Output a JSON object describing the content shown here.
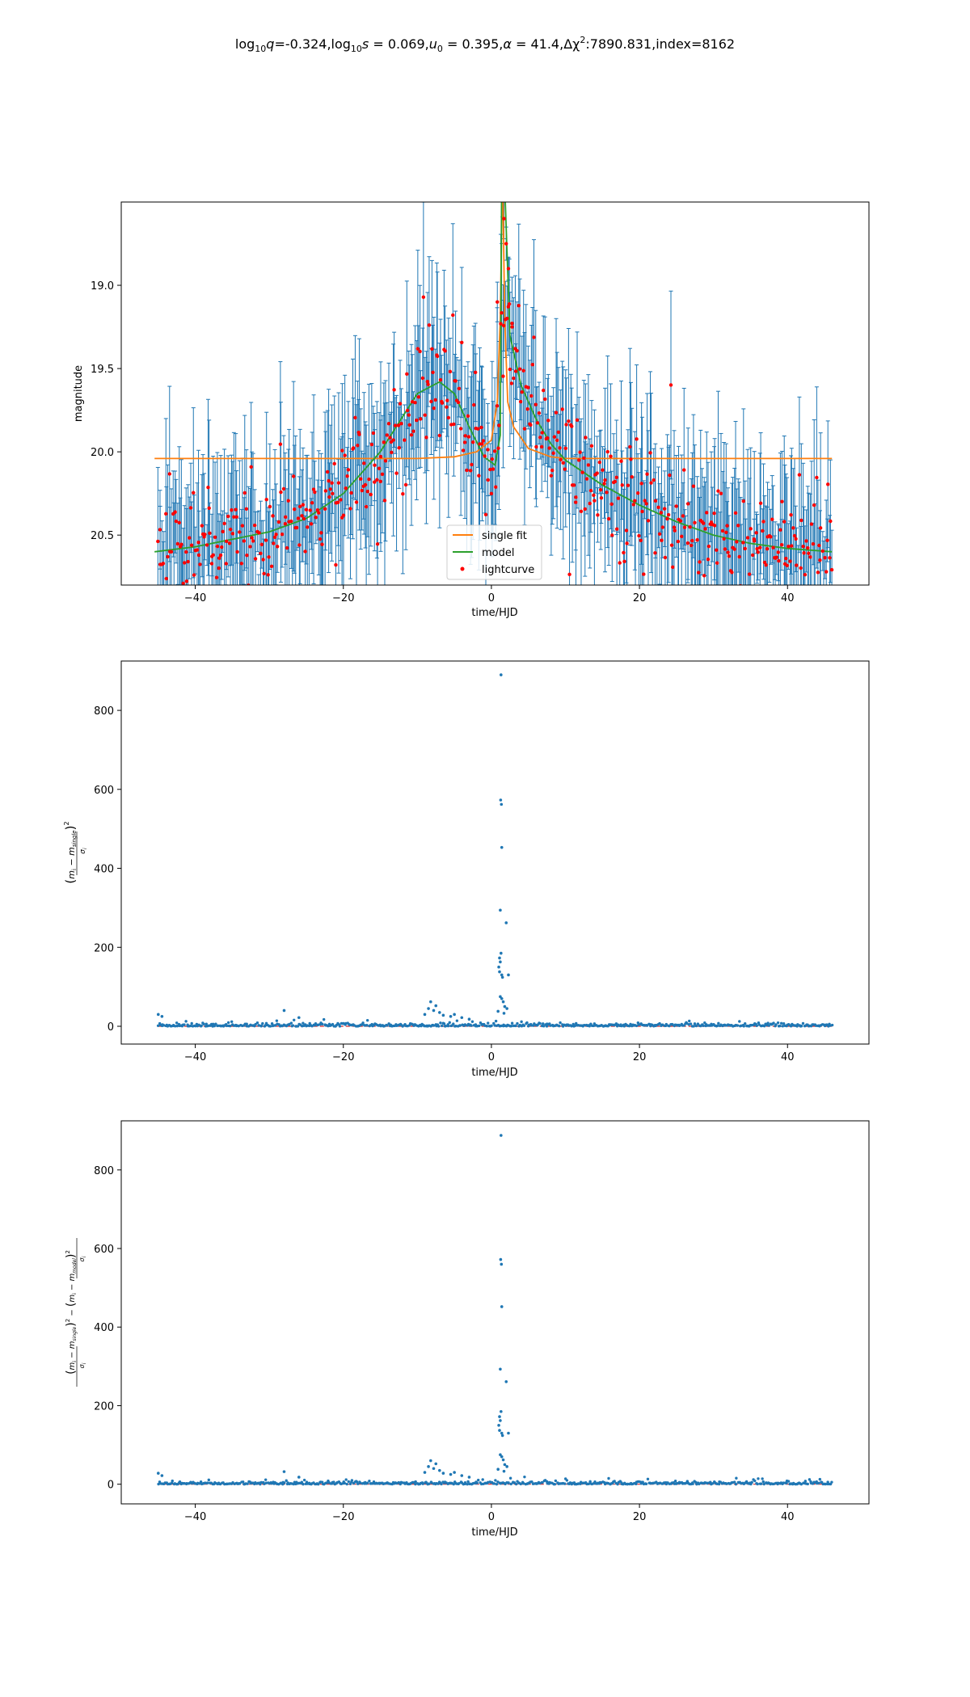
{
  "title_parts": {
    "log": "log",
    "sub10": "10",
    "q": "q",
    "q_val": "=-0.324,",
    "s": "s",
    "s_val": " = 0.069,",
    "u": "u",
    "sub0": "0",
    "u_val": " = 0.395,",
    "alpha": "α",
    "alpha_val": " = 41.4,",
    "delta_chi": "Δχ",
    "sup2": "2",
    "chi_val": ":7890.831,index=8162"
  },
  "chart_data": [
    {
      "type": "scatter",
      "panel": "lightcurve",
      "xlabel": "time/HJD",
      "ylabel": "magnitude",
      "xlim": [
        -50,
        51
      ],
      "ylim": [
        20.8,
        18.5
      ],
      "y_inverted": true,
      "xticks": [
        -40,
        -20,
        0,
        20,
        40
      ],
      "yticks": [
        19.0,
        19.5,
        20.0,
        20.5
      ],
      "xtick_labels": [
        "−40",
        "−20",
        "0",
        "20",
        "40"
      ],
      "ytick_labels": [
        "19.0",
        "19.5",
        "20.0",
        "20.5"
      ],
      "legend_position": "lower center",
      "legend": [
        "single fit",
        "model",
        "lightcurve"
      ],
      "colors": {
        "single_fit": "#ff7f0e",
        "model": "#2ca02c",
        "lightcurve": "#ff0000",
        "errorbar": "#1f77b4"
      },
      "single_fit": {
        "baseline": 20.04,
        "t0": 1.5,
        "peak_magnitude": 18.3,
        "x": [
          -45.5,
          -20,
          -10,
          -5,
          -2,
          0,
          0.8,
          1.2,
          1.5,
          1.8,
          2.2,
          3,
          5,
          8,
          10,
          20,
          46
        ],
        "y": [
          20.04,
          20.04,
          20.04,
          20.03,
          20.0,
          19.93,
          19.7,
          19.2,
          18.3,
          19.2,
          19.7,
          19.85,
          19.98,
          20.03,
          20.04,
          20.04,
          20.04
        ]
      },
      "model": {
        "x": [
          -45.5,
          -40,
          -30,
          -25,
          -20,
          -15,
          -10,
          -7,
          -5,
          -3,
          -1,
          0.5,
          1.2,
          1.4,
          1.8,
          2.5,
          4,
          6,
          8,
          10,
          15,
          20,
          25,
          30,
          35,
          40,
          46
        ],
        "y": [
          20.6,
          20.57,
          20.48,
          20.4,
          20.25,
          20.0,
          19.65,
          19.58,
          19.65,
          19.85,
          20.03,
          20.08,
          19.9,
          18.3,
          18.4,
          19.3,
          19.6,
          19.8,
          19.95,
          20.05,
          20.2,
          20.32,
          20.42,
          20.5,
          20.55,
          20.58,
          20.6
        ]
      },
      "lightcurve": {
        "x_range": [
          -45,
          46
        ],
        "n_points": 560,
        "error_range": [
          0.1,
          0.6
        ]
      }
    },
    {
      "type": "scatter",
      "panel": "chi2_single",
      "xlabel": "time/HJD",
      "ylabel": "(\\frac{m_i - m_{single}}{\\sigma_i})^2",
      "xlim": [
        -50,
        51
      ],
      "ylim": [
        -45,
        925
      ],
      "xticks": [
        -40,
        -20,
        0,
        20,
        40
      ],
      "yticks": [
        0,
        200,
        400,
        600,
        800
      ],
      "xtick_labels": [
        "−40",
        "−20",
        "0",
        "20",
        "40"
      ],
      "ytick_labels": [
        "0",
        "200",
        "400",
        "600",
        "800"
      ],
      "colors": {
        "points": "#1f77b4",
        "baseline": "#d62728"
      },
      "spikes": {
        "x": [
          1.3,
          1.25,
          1.35,
          1.4,
          1.2,
          1.3,
          1.1,
          1.2,
          1.0,
          1.1,
          1.4,
          1.5,
          2.0,
          2.3,
          1.2,
          1.4,
          1.6,
          1.8,
          2.1,
          0.9,
          1.7
        ],
        "y": [
          890,
          573,
          562,
          453,
          294,
          185,
          173,
          163,
          150,
          138,
          130,
          124,
          262,
          130,
          75,
          70,
          62,
          50,
          45,
          38,
          33
        ]
      },
      "points": {
        "x_range": [
          -45,
          46
        ],
        "n_points": 560,
        "bump": {
          "x": [
            -9,
            -8.5,
            -8.2,
            -7.8,
            -7.5,
            -7,
            -6.5,
            -5.5,
            -5,
            -4,
            -3
          ],
          "y": [
            30,
            45,
            62,
            40,
            52,
            35,
            28,
            25,
            30,
            22,
            18
          ]
        },
        "outliers": {
          "x": [
            -45,
            -44.5,
            -28,
            -26
          ],
          "y": [
            30,
            25,
            40,
            22
          ]
        }
      }
    },
    {
      "type": "scatter",
      "panel": "chi2_difference",
      "xlabel": "time/HJD",
      "ylabel": "(\\frac{m_i - m_{single}}{\\sigma_i})^2 - (\\frac{m_i - m_{model}}{\\sigma_i})^2",
      "xlim": [
        -50,
        51
      ],
      "ylim": [
        -50,
        925
      ],
      "xticks": [
        -40,
        -20,
        0,
        20,
        40
      ],
      "yticks": [
        0,
        200,
        400,
        600,
        800
      ],
      "xtick_labels": [
        "−40",
        "−20",
        "0",
        "20",
        "40"
      ],
      "ytick_labels": [
        "0",
        "200",
        "400",
        "600",
        "800"
      ],
      "colors": {
        "points": "#1f77b4",
        "baseline": "#d62728"
      },
      "spikes": {
        "x": [
          1.3,
          1.25,
          1.35,
          1.4,
          1.2,
          1.3,
          1.1,
          1.2,
          1.0,
          1.1,
          1.4,
          1.5,
          2.0,
          2.3,
          1.2,
          1.4,
          1.6,
          1.8,
          2.1,
          0.9,
          1.7
        ],
        "y": [
          888,
          572,
          560,
          452,
          293,
          185,
          172,
          162,
          150,
          137,
          130,
          124,
          261,
          130,
          75,
          70,
          62,
          50,
          45,
          38,
          33
        ]
      },
      "points": {
        "x_range": [
          -45,
          46
        ],
        "n_points": 560,
        "bump": {
          "x": [
            -9,
            -8.5,
            -8.2,
            -7.8,
            -7.5,
            -7,
            -6.5,
            -5.5,
            -5,
            -4,
            -3
          ],
          "y": [
            30,
            45,
            60,
            40,
            52,
            35,
            28,
            25,
            30,
            22,
            18
          ]
        },
        "outliers": {
          "x": [
            -45,
            -44.5,
            -28,
            -26
          ],
          "y": [
            28,
            22,
            32,
            18
          ]
        }
      }
    }
  ]
}
